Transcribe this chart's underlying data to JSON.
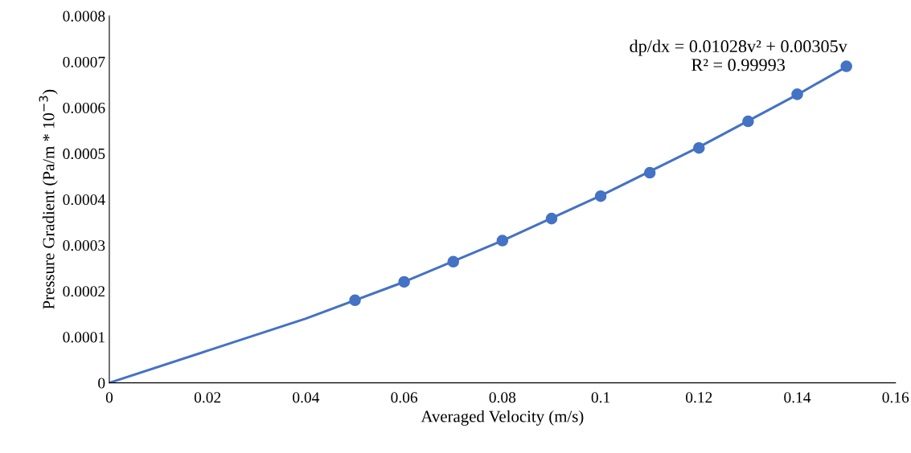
{
  "chart_data": {
    "type": "scatter",
    "xlabel": "Averaged Velocity (m/s)",
    "ylabel": "Pressure Gradient (Pa/m * 10$^{−3}$)",
    "annotations": [
      "dp/dx = 0.01028v² + 0.00305v\nR² = 0.99993"
    ],
    "xlim": [
      0,
      0.16
    ],
    "xticks": [
      0,
      0.02,
      0.04,
      0.06,
      0.08,
      0.1,
      0.12,
      0.14,
      0.16
    ],
    "ylim": [
      0,
      0.0008
    ],
    "yticks": [
      0,
      0.0001,
      0.0002,
      0.0003,
      0.0004,
      0.0005,
      0.0006,
      0.0007,
      0.0008
    ],
    "grid": false,
    "legend": false,
    "series": [
      {
        "color": "#4472c4",
        "marker": "circle",
        "x": [
          0.05,
          0.06,
          0.07,
          0.08,
          0.09,
          0.1,
          0.11,
          0.12,
          0.13,
          0.14,
          0.15
        ],
        "values": [
          0.00018,
          0.00022,
          0.000264,
          0.00031,
          0.000358,
          0.000407,
          0.000458,
          0.000512,
          0.00057,
          0.000629,
          0.00069
        ]
      },
      {
        "type": "line",
        "color": "#4472c4",
        "marker": "none",
        "line_style": "solid",
        "x": [
          0,
          0.02,
          0.04,
          0.06,
          0.08,
          0.1,
          0.12,
          0.14,
          0.15
        ],
        "values": [
          0,
          7e-05,
          0.00014,
          0.00022,
          0.00031,
          0.000408,
          0.000514,
          0.000628,
          0.000689
        ]
      }
    ]
  }
}
